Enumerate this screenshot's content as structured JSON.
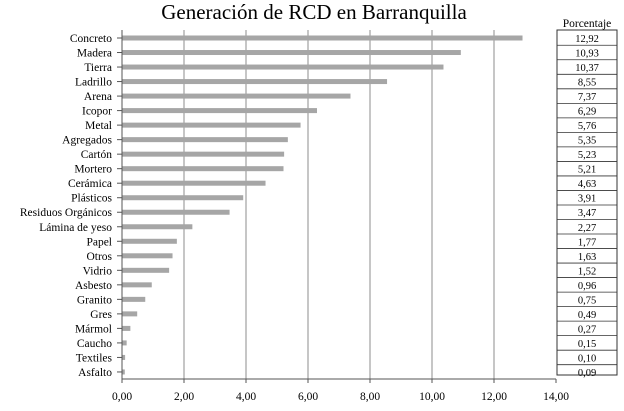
{
  "chart_data": {
    "type": "bar",
    "orientation": "horizontal",
    "title": "Generación de RCD en Barranquilla",
    "categories": [
      "Concreto",
      "Madera",
      "Tierra",
      "Ladrillo",
      "Arena",
      "Icopor",
      "Metal",
      "Agregados",
      "Cartón",
      "Mortero",
      "Cerámica",
      "Plásticos",
      "Residuos Orgánicos",
      "Lámina de yeso",
      "Papel",
      "Otros",
      "Vidrio",
      "Asbesto",
      "Granito",
      "Gres",
      "Mármol",
      "Caucho",
      "Textiles",
      "Asfalto"
    ],
    "values": [
      12.92,
      10.93,
      10.37,
      8.55,
      7.37,
      6.29,
      5.76,
      5.35,
      5.23,
      5.21,
      4.63,
      3.91,
      3.47,
      2.27,
      1.77,
      1.63,
      1.52,
      0.96,
      0.75,
      0.49,
      0.27,
      0.15,
      0.1,
      0.09
    ],
    "value_labels": [
      "12,92",
      "10,93",
      "10,37",
      "8,55",
      "7,37",
      "6,29",
      "5,76",
      "5,35",
      "5,23",
      "5,21",
      "4,63",
      "3,91",
      "3,47",
      "2,27",
      "1,77",
      "1,63",
      "1,52",
      "0,96",
      "0,75",
      "0,49",
      "0,27",
      "0,15",
      "0,10",
      "0,09"
    ],
    "xlim": [
      0,
      14
    ],
    "x_ticks": [
      "0,00",
      "2,00",
      "4,00",
      "6,00",
      "8,00",
      "10,00",
      "12,00",
      "14,00"
    ],
    "table_header": "Porcentaje",
    "grid": "vertical",
    "bar_color": "#a6a6a6",
    "grid_color": "#8c8c8c"
  }
}
